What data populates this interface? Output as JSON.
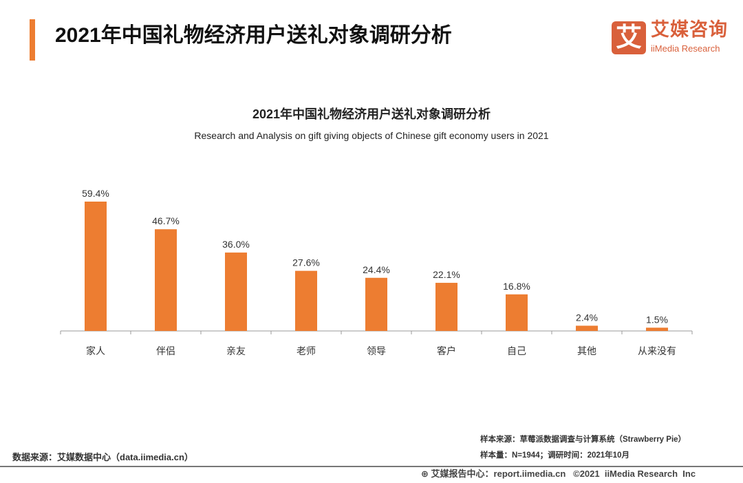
{
  "page_title": "2021年中国礼物经济用户送礼对象调研分析",
  "logo": {
    "mark": "艾",
    "cn": "艾媒咨询",
    "en": "iiMedia Research"
  },
  "chart_data": {
    "type": "bar",
    "title": "2021年中国礼物经济用户送礼对象调研分析",
    "subtitle": "Research and Analysis on gift giving objects of Chinese gift economy users in 2021",
    "categories": [
      "家人",
      "伴侣",
      "亲友",
      "老师",
      "领导",
      "客户",
      "自己",
      "其他",
      "从来没有"
    ],
    "values": [
      59.4,
      46.7,
      36.0,
      27.6,
      24.4,
      22.1,
      16.8,
      2.4,
      1.5
    ],
    "labels": [
      "59.4%",
      "46.7%",
      "36.0%",
      "27.6%",
      "24.4%",
      "22.1%",
      "16.8%",
      "2.4%",
      "1.5%"
    ],
    "unit": "%",
    "bar_color": "#ed7d31",
    "grid": false,
    "legend": "none"
  },
  "footer": {
    "source": "数据来源：艾媒数据中心（data.iimedia.cn）",
    "sample_source": "样本来源：草莓派数据调查与计算系统（Strawberry Pie）",
    "sample_size": "样本量：N=1944；调研时间：2021年10月",
    "copyright": "艾媒报告中心：report.iimedia.cn   ©2021  iiMedia Research  Inc"
  }
}
